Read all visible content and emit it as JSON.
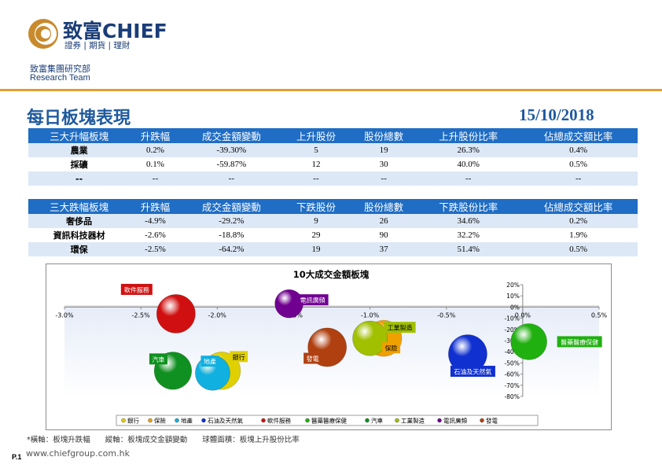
{
  "header": {
    "logo_cn": "致富",
    "logo_en": "CHIEF",
    "logo_sub": "證券 | 期貨 | 理財",
    "dept_cn": "致富集團研究部",
    "dept_en": "Research Team"
  },
  "title": "每日板塊表現",
  "date": "15/10/2018",
  "up_table": {
    "headers": [
      "三大升幅板塊",
      "升跌幅",
      "成交金額變動",
      "上升股份",
      "股份總數",
      "上升股份比率",
      "佔總成交額比率"
    ],
    "rows": [
      [
        "農業",
        "0.2%",
        "-39.30%",
        "5",
        "19",
        "26.3%",
        "0.4%"
      ],
      [
        "採礦",
        "0.1%",
        "-59.87%",
        "12",
        "30",
        "40.0%",
        "0.5%"
      ],
      [
        "--",
        "--",
        "--",
        "--",
        "--",
        "--",
        "--"
      ]
    ]
  },
  "down_table": {
    "headers": [
      "三大跌幅板塊",
      "升跌幅",
      "成交金額變動",
      "下跌股份",
      "股份總數",
      "下跌股份比率",
      "佔總成交額比率"
    ],
    "rows": [
      [
        "奢侈品",
        "-4.9%",
        "-29.2%",
        "9",
        "26",
        "34.6%",
        "0.2%"
      ],
      [
        "資訊科技器材",
        "-2.6%",
        "-18.8%",
        "29",
        "90",
        "32.2%",
        "1.9%"
      ],
      [
        "環保",
        "-2.5%",
        "-64.2%",
        "19",
        "37",
        "51.4%",
        "0.5%"
      ]
    ]
  },
  "chart_data": {
    "type": "bubble",
    "title": "10大成交金額板塊",
    "xlim": [
      -3.0,
      0.5
    ],
    "ylim": [
      -80,
      20
    ],
    "x_ticks": [
      "-3.0%",
      "-2.5%",
      "-2.0%",
      "-1.5%",
      "-1.0%",
      "-0.5%",
      "0.0%",
      "0.5%"
    ],
    "y_ticks": [
      "20%",
      "10%",
      "0%",
      "-10%",
      "-20%",
      "-30%",
      "-40%",
      "-50%",
      "-60%",
      "-70%",
      "-80%"
    ],
    "legend_position": "bottom",
    "series": [
      {
        "name": "銀行",
        "x": -1.97,
        "y": -57,
        "size": 0.55,
        "color": "#e0d000"
      },
      {
        "name": "保險",
        "x": -0.91,
        "y": -28,
        "size": 0.5,
        "color": "#f0a000"
      },
      {
        "name": "地產",
        "x": -2.03,
        "y": -59,
        "size": 0.45,
        "color": "#10b0e0"
      },
      {
        "name": "石油及天然氣",
        "x": -0.36,
        "y": -42,
        "size": 0.6,
        "color": "#1030d0"
      },
      {
        "name": "軟件服務",
        "x": -2.27,
        "y": -6,
        "size": 0.6,
        "color": "#d01010"
      },
      {
        "name": "醫藥醫療保健",
        "x": 0.04,
        "y": -31,
        "size": 0.5,
        "color": "#20b010"
      },
      {
        "name": "汽車",
        "x": -2.29,
        "y": -57,
        "size": 0.55,
        "color": "#109020"
      },
      {
        "name": "工業製造",
        "x": -1.0,
        "y": -28,
        "size": 0.45,
        "color": "#a0c000"
      },
      {
        "name": "電訊廣頻",
        "x": -1.53,
        "y": 3,
        "size": 0.25,
        "color": "#700090"
      },
      {
        "name": "發電",
        "x": -1.28,
        "y": -36,
        "size": 0.6,
        "color": "#b04010"
      }
    ],
    "legend_items": [
      "銀行",
      "保險",
      "地產",
      "石油及天然氣",
      "軟件服務",
      "醫藥醫療保健",
      "汽車",
      "工業製造",
      "電訊廣頻",
      "發電"
    ]
  },
  "footnote": "*橫軸：板塊升跌幅　　縱軸：板塊成交金額變動　　球體面積：板塊上升股份比率",
  "website": "www.chiefgroup.com.hk",
  "page_num": "P.1"
}
